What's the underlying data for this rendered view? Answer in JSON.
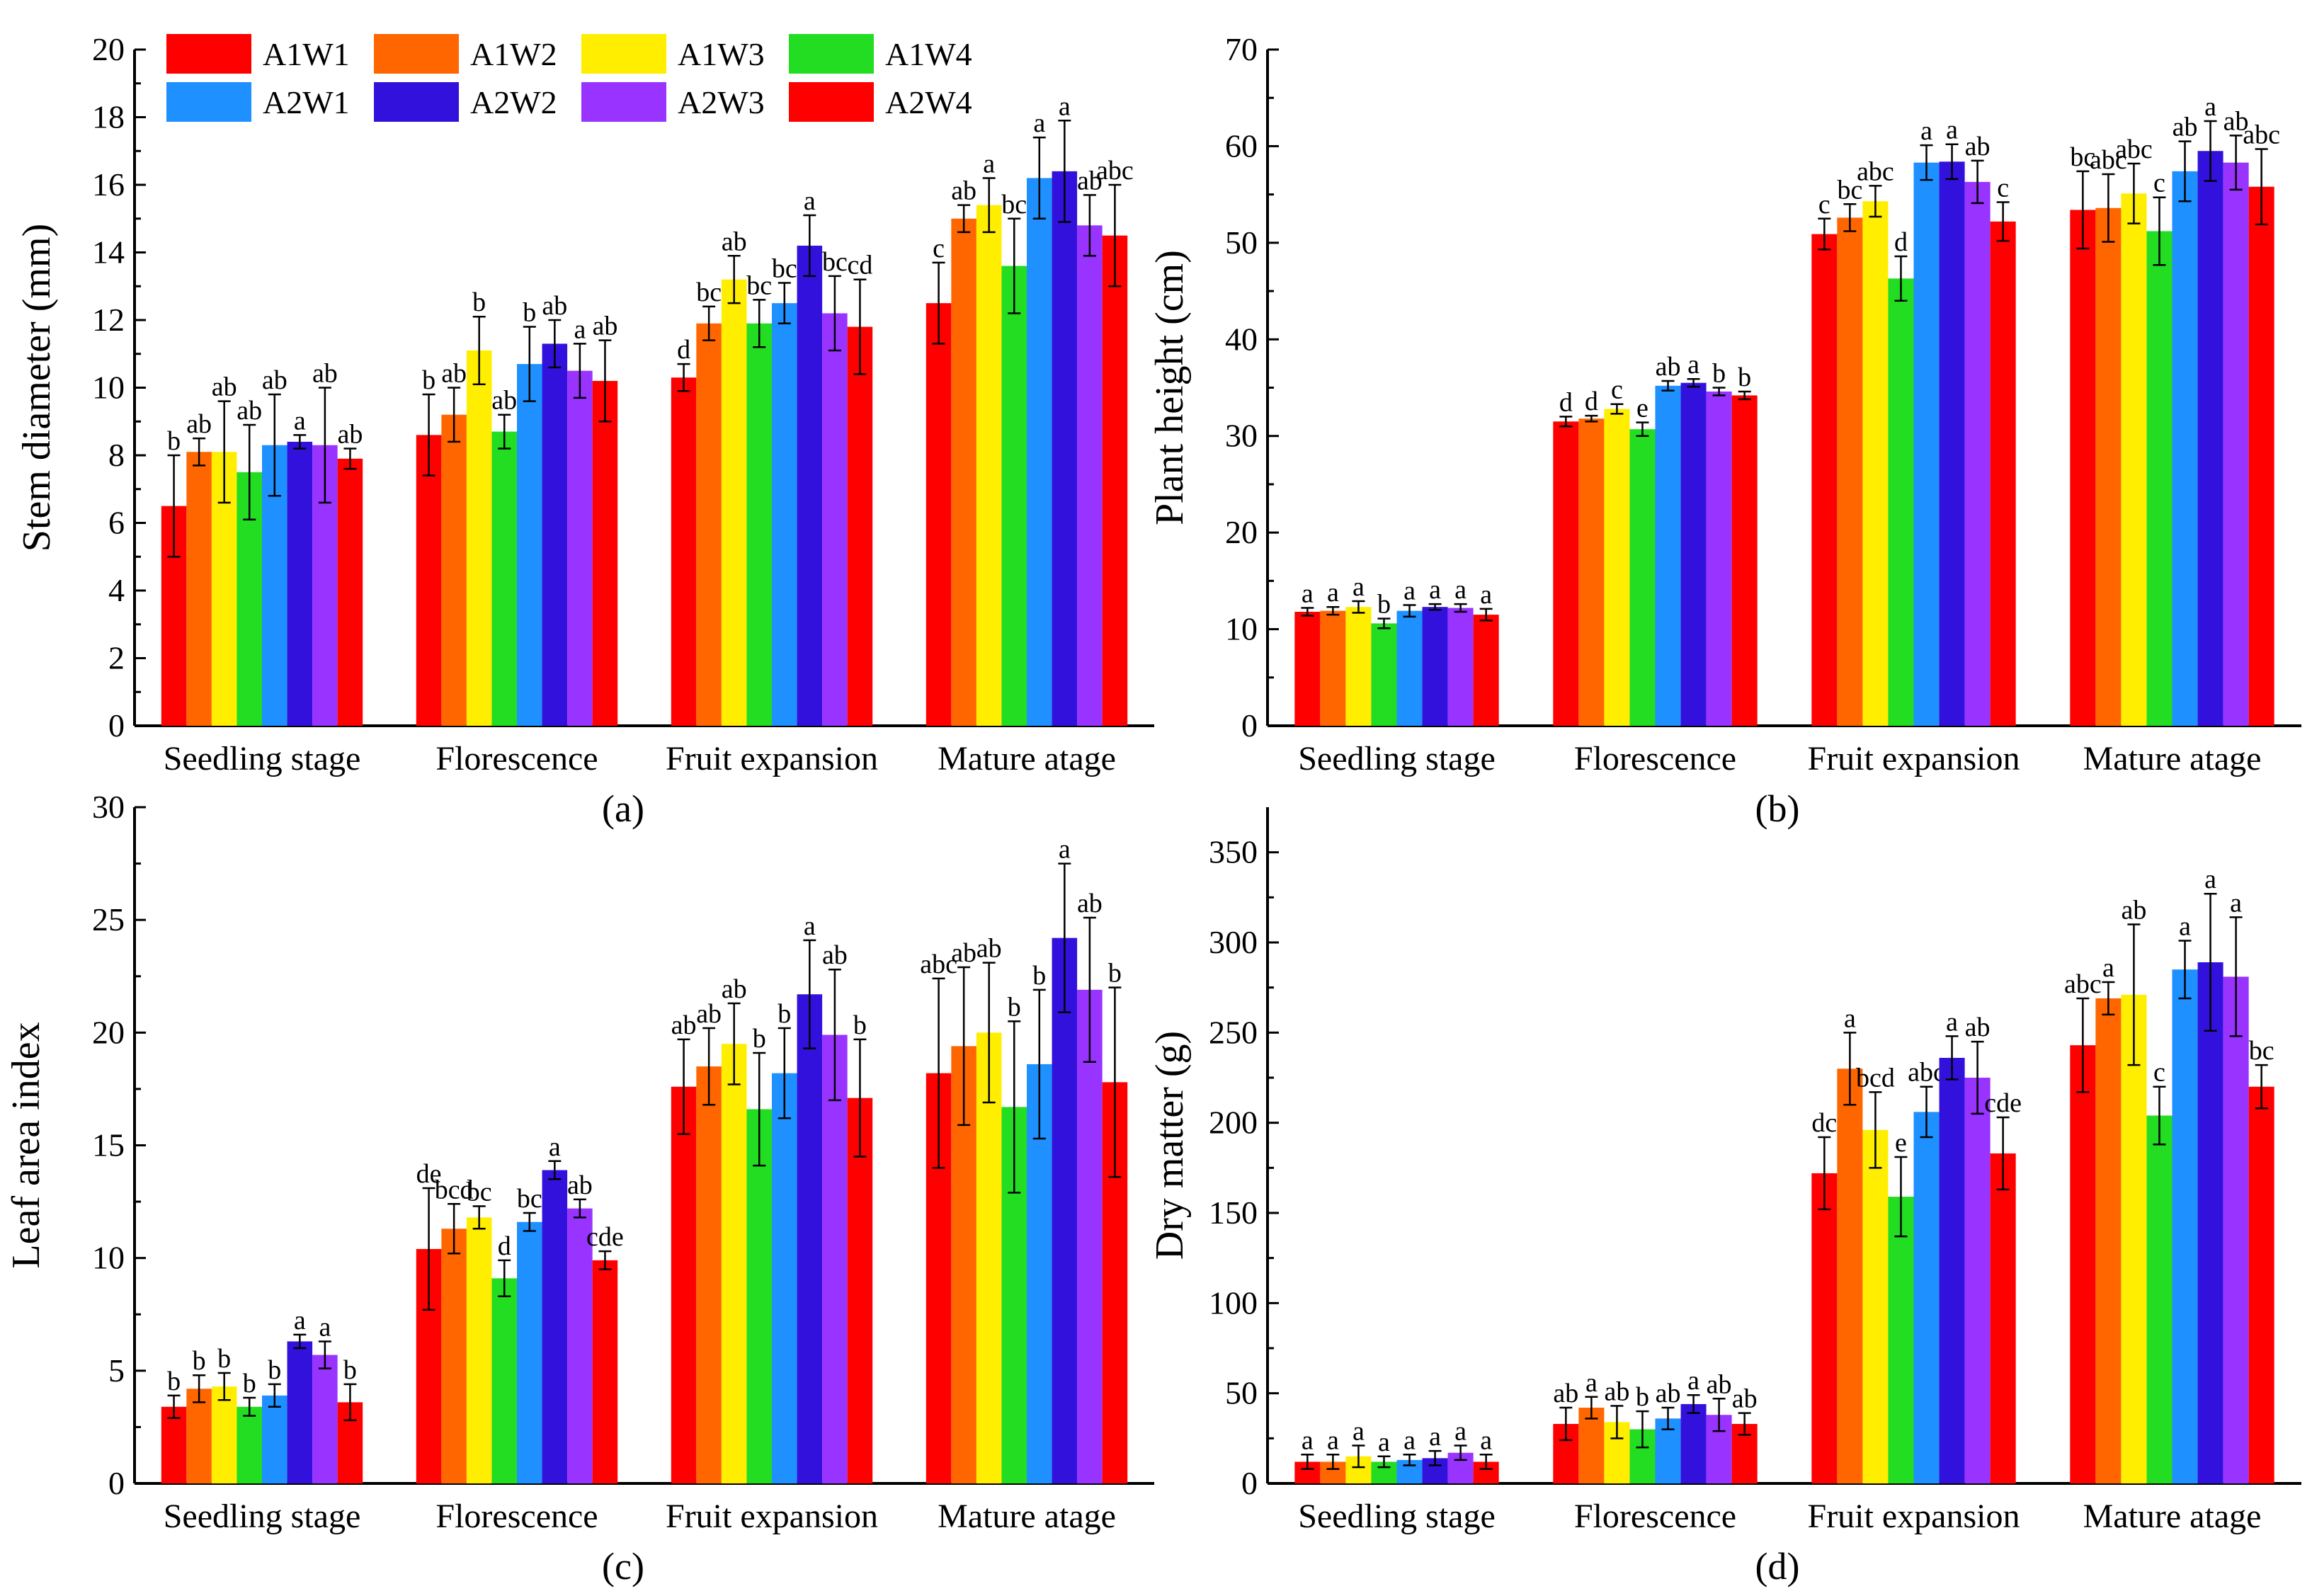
{
  "legend": [
    "A1W1",
    "A1W2",
    "A1W3",
    "A1W4",
    "A2W1",
    "A2W2",
    "A2W3",
    "A2W4"
  ],
  "colors": [
    "#ff0000",
    "#ff6600",
    "#ffee00",
    "#22dd22",
    "#1e90ff",
    "#3311dd",
    "#9933ff",
    "#ff0000"
  ],
  "chart_data": [
    {
      "type": "bar",
      "panel": "(a)",
      "ylabel": "Stem diameter (mm)",
      "ylim": [
        0,
        20
      ],
      "yticks": [
        0,
        2,
        4,
        6,
        8,
        10,
        12,
        14,
        16,
        18,
        20
      ],
      "categories": [
        "Seedling stage",
        "Florescence",
        "Fruit expansion",
        "Mature atage"
      ],
      "series": [
        {
          "name": "A1W1",
          "values": [
            6.5,
            8.6,
            10.3,
            12.5
          ],
          "errors": [
            1.5,
            1.2,
            0.4,
            1.2
          ],
          "letters": [
            "b",
            "b",
            "d",
            "c"
          ]
        },
        {
          "name": "A1W2",
          "values": [
            8.1,
            9.2,
            11.9,
            15.0
          ],
          "errors": [
            0.4,
            0.8,
            0.5,
            0.4
          ],
          "letters": [
            "ab",
            "ab",
            "bc",
            "ab"
          ]
        },
        {
          "name": "A1W3",
          "values": [
            8.1,
            11.1,
            13.2,
            15.4
          ],
          "errors": [
            1.5,
            1.0,
            0.7,
            0.8
          ],
          "letters": [
            "ab",
            "b",
            "ab",
            "a"
          ]
        },
        {
          "name": "A1W4",
          "values": [
            7.5,
            8.7,
            11.9,
            13.6
          ],
          "errors": [
            1.4,
            0.5,
            0.7,
            1.4
          ],
          "letters": [
            "ab",
            "ab",
            "bc",
            "bc"
          ]
        },
        {
          "name": "A2W1",
          "values": [
            8.3,
            10.7,
            12.5,
            16.2
          ],
          "errors": [
            1.5,
            1.1,
            0.6,
            1.2
          ],
          "letters": [
            "ab",
            "b",
            "bc",
            "a"
          ]
        },
        {
          "name": "A2W2",
          "values": [
            8.4,
            11.3,
            14.2,
            16.4
          ],
          "errors": [
            0.2,
            0.7,
            0.9,
            1.5
          ],
          "letters": [
            "a",
            "ab",
            "a",
            "a"
          ]
        },
        {
          "name": "A2W3",
          "values": [
            8.3,
            10.5,
            12.2,
            14.8
          ],
          "errors": [
            1.7,
            0.8,
            1.1,
            0.9
          ],
          "letters": [
            "ab",
            "a",
            "bc",
            "ab"
          ]
        },
        {
          "name": "A2W4",
          "values": [
            7.9,
            10.2,
            11.8,
            14.5
          ],
          "errors": [
            0.3,
            1.2,
            1.4,
            1.5
          ],
          "letters": [
            "ab",
            "ab",
            "cd",
            "abc"
          ]
        }
      ]
    },
    {
      "type": "bar",
      "panel": "(b)",
      "ylabel": "Plant height (cm)",
      "ylim": [
        0,
        70
      ],
      "yticks": [
        0,
        10,
        20,
        30,
        40,
        50,
        60,
        70
      ],
      "categories": [
        "Seedling stage",
        "Florescence",
        "Fruit expansion",
        "Mature atage"
      ],
      "series": [
        {
          "name": "A1W1",
          "values": [
            11.8,
            31.5,
            50.9,
            53.4
          ],
          "errors": [
            0.4,
            0.5,
            1.6,
            4.0
          ],
          "letters": [
            "a",
            "d",
            "c",
            "bc"
          ]
        },
        {
          "name": "A1W2",
          "values": [
            11.9,
            31.8,
            52.6,
            53.6
          ],
          "errors": [
            0.4,
            0.3,
            1.4,
            3.5
          ],
          "letters": [
            "a",
            "d",
            "bc",
            "abc"
          ]
        },
        {
          "name": "A1W3",
          "values": [
            12.3,
            32.8,
            54.3,
            55.1
          ],
          "errors": [
            0.6,
            0.5,
            1.6,
            3.1
          ],
          "letters": [
            "a",
            "c",
            "abc",
            "abc"
          ]
        },
        {
          "name": "A1W4",
          "values": [
            10.6,
            30.7,
            46.3,
            51.2
          ],
          "errors": [
            0.5,
            0.7,
            2.3,
            3.5
          ],
          "letters": [
            "b",
            "e",
            "d",
            "c"
          ]
        },
        {
          "name": "A2W1",
          "values": [
            11.9,
            35.2,
            58.3,
            57.4
          ],
          "errors": [
            0.6,
            0.5,
            1.8,
            3.1
          ],
          "letters": [
            "a",
            "ab",
            "a",
            "ab"
          ]
        },
        {
          "name": "A2W2",
          "values": [
            12.3,
            35.5,
            58.4,
            59.5
          ],
          "errors": [
            0.3,
            0.4,
            1.8,
            3.1
          ],
          "letters": [
            "a",
            "a",
            "a",
            "a"
          ]
        },
        {
          "name": "A2W3",
          "values": [
            12.2,
            34.6,
            56.3,
            58.3
          ],
          "errors": [
            0.4,
            0.4,
            2.2,
            2.8
          ],
          "letters": [
            "a",
            "b",
            "ab",
            "ab"
          ]
        },
        {
          "name": "A2W4",
          "values": [
            11.5,
            34.2,
            52.2,
            55.8
          ],
          "errors": [
            0.6,
            0.4,
            2.0,
            3.9
          ],
          "letters": [
            "a",
            "b",
            "c",
            "abc"
          ]
        }
      ]
    },
    {
      "type": "bar",
      "panel": "(c)",
      "ylabel": "Leaf area index",
      "ylim": [
        0,
        30
      ],
      "yticks": [
        0,
        5,
        10,
        15,
        20,
        25,
        30
      ],
      "categories": [
        "Seedling stage",
        "Florescence",
        "Fruit expansion",
        "Mature atage"
      ],
      "series": [
        {
          "name": "A1W1",
          "values": [
            3.4,
            10.4,
            17.6,
            18.2
          ],
          "errors": [
            0.5,
            2.7,
            2.1,
            4.2
          ],
          "letters": [
            "b",
            "de",
            "ab",
            "abc"
          ]
        },
        {
          "name": "A1W2",
          "values": [
            4.2,
            11.3,
            18.5,
            19.4
          ],
          "errors": [
            0.6,
            1.1,
            1.7,
            3.5
          ],
          "letters": [
            "b",
            "bcd",
            "ab",
            "ab"
          ]
        },
        {
          "name": "A1W3",
          "values": [
            4.3,
            11.8,
            19.5,
            20.0
          ],
          "errors": [
            0.6,
            0.5,
            1.8,
            3.1
          ],
          "letters": [
            "b",
            "bc",
            "ab",
            "ab"
          ]
        },
        {
          "name": "A1W4",
          "values": [
            3.4,
            9.1,
            16.6,
            16.7
          ],
          "errors": [
            0.4,
            0.8,
            2.5,
            3.8
          ],
          "letters": [
            "b",
            "d",
            "b",
            "b"
          ]
        },
        {
          "name": "A2W1",
          "values": [
            3.9,
            11.6,
            18.2,
            18.6
          ],
          "errors": [
            0.5,
            0.4,
            2.0,
            3.3
          ],
          "letters": [
            "b",
            "bc",
            "b",
            "b"
          ]
        },
        {
          "name": "A2W2",
          "values": [
            6.3,
            13.9,
            21.7,
            24.2
          ],
          "errors": [
            0.3,
            0.4,
            2.4,
            3.3
          ],
          "letters": [
            "a",
            "a",
            "a",
            "a"
          ]
        },
        {
          "name": "A2W3",
          "values": [
            5.7,
            12.2,
            19.9,
            21.9
          ],
          "errors": [
            0.6,
            0.4,
            2.9,
            3.2
          ],
          "letters": [
            "a",
            "ab",
            "ab",
            "ab"
          ]
        },
        {
          "name": "A2W4",
          "values": [
            3.6,
            9.9,
            17.1,
            17.8
          ],
          "errors": [
            0.8,
            0.4,
            2.6,
            4.2
          ],
          "letters": [
            "b",
            "cde",
            "b",
            "b"
          ]
        }
      ]
    },
    {
      "type": "bar",
      "panel": "(d)",
      "ylabel": "Dry matter (g)",
      "ylim": [
        0,
        375
      ],
      "yticks": [
        0,
        50,
        100,
        150,
        200,
        250,
        300,
        350
      ],
      "categories": [
        "Seedling stage",
        "Florescence",
        "Fruit expansion",
        "Mature atage"
      ],
      "series": [
        {
          "name": "A1W1",
          "values": [
            12,
            33,
            172,
            243
          ],
          "errors": [
            4,
            9,
            20,
            26
          ],
          "letters": [
            "a",
            "ab",
            "dc",
            "abc"
          ]
        },
        {
          "name": "A1W2",
          "values": [
            12,
            42,
            230,
            269
          ],
          "errors": [
            4,
            6,
            20,
            9
          ],
          "letters": [
            "a",
            "a",
            "a",
            "a"
          ]
        },
        {
          "name": "A1W3",
          "values": [
            15,
            34,
            196,
            271
          ],
          "errors": [
            6,
            9,
            21,
            39
          ],
          "letters": [
            "a",
            "ab",
            "bcd",
            "ab"
          ]
        },
        {
          "name": "A1W4",
          "values": [
            12,
            30,
            159,
            204
          ],
          "errors": [
            3,
            10,
            22,
            16
          ],
          "letters": [
            "a",
            "b",
            "e",
            "c"
          ]
        },
        {
          "name": "A2W1",
          "values": [
            13,
            36,
            206,
            285
          ],
          "errors": [
            3,
            6,
            14,
            16
          ],
          "letters": [
            "a",
            "ab",
            "abc",
            "a"
          ]
        },
        {
          "name": "A2W2",
          "values": [
            14,
            44,
            236,
            289
          ],
          "errors": [
            4,
            5,
            12,
            38
          ],
          "letters": [
            "a",
            "a",
            "a",
            "a"
          ]
        },
        {
          "name": "A2W3",
          "values": [
            17,
            38,
            225,
            281
          ],
          "errors": [
            4,
            9,
            20,
            33
          ],
          "letters": [
            "a",
            "ab",
            "ab",
            "a"
          ]
        },
        {
          "name": "A2W4",
          "values": [
            12,
            33,
            183,
            220
          ],
          "errors": [
            4,
            6,
            20,
            12
          ],
          "letters": [
            "a",
            "ab",
            "cde",
            "bc"
          ]
        }
      ]
    }
  ]
}
